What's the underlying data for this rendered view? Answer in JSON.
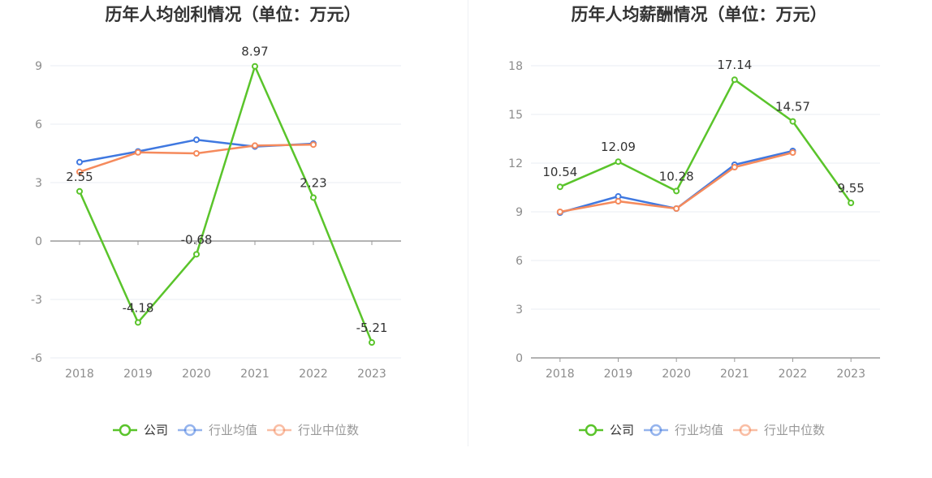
{
  "chart_data": [
    {
      "type": "line",
      "title": "历年人均创利情况（单位：万元）",
      "categories": [
        "2018",
        "2019",
        "2020",
        "2021",
        "2022",
        "2023"
      ],
      "ylim": [
        -6,
        9
      ],
      "yticks": [
        -6,
        -3,
        0,
        3,
        6,
        9
      ],
      "grid": true,
      "legend": "bottom",
      "series": [
        {
          "name": "公司",
          "color": "#5ac42b",
          "values": [
            2.55,
            -4.18,
            -0.68,
            8.97,
            2.23,
            -5.21
          ],
          "labels": [
            "2.55",
            "-4.18",
            "-0.68",
            "8.97",
            "2.23",
            "-5.21"
          ]
        },
        {
          "name": "行业均值",
          "color": "#3f78e0",
          "values": [
            4.05,
            4.6,
            5.2,
            4.85,
            5.0,
            null
          ]
        },
        {
          "name": "行业中位数",
          "color": "#f58a5c",
          "values": [
            3.55,
            4.55,
            4.5,
            4.9,
            4.95,
            null
          ]
        }
      ]
    },
    {
      "type": "line",
      "title": "历年人均薪酬情况（单位：万元）",
      "categories": [
        "2018",
        "2019",
        "2020",
        "2021",
        "2022",
        "2023"
      ],
      "ylim": [
        0,
        18
      ],
      "yticks": [
        0,
        3,
        6,
        9,
        12,
        15,
        18
      ],
      "grid": true,
      "legend": "bottom",
      "series": [
        {
          "name": "公司",
          "color": "#5ac42b",
          "values": [
            10.54,
            12.09,
            10.28,
            17.14,
            14.57,
            9.55
          ],
          "labels": [
            "10.54",
            "12.09",
            "10.28",
            "17.14",
            "14.57",
            "9.55"
          ]
        },
        {
          "name": "行业均值",
          "color": "#3f78e0",
          "values": [
            8.95,
            9.95,
            9.2,
            11.9,
            12.75,
            null
          ]
        },
        {
          "name": "行业中位数",
          "color": "#f58a5c",
          "values": [
            9.0,
            9.65,
            9.2,
            11.75,
            12.65,
            null
          ]
        }
      ]
    }
  ]
}
